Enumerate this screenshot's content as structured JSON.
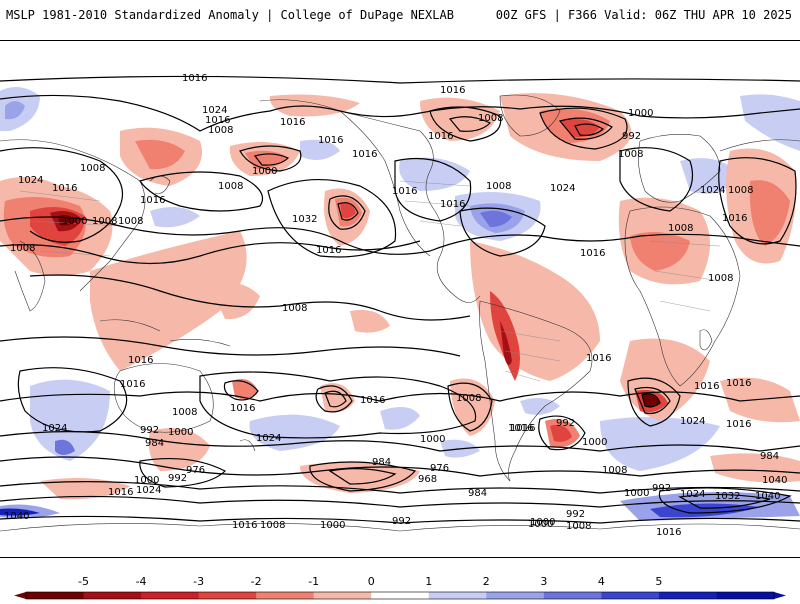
{
  "header": {
    "left": "MSLP 1981-2010 Standardized Anomaly | College of DuPage NEXLAB",
    "right": "00Z GFS | F366 Valid: 06Z THU APR 10 2025"
  },
  "isobar_labels": [
    "1016",
    "1016",
    "1024",
    "1016",
    "1008",
    "1016",
    "1016",
    "1016",
    "1008",
    "1000",
    "992",
    "1008",
    "1008",
    "1000",
    "1008",
    "1024",
    "1016",
    "1016",
    "1008",
    "1016",
    "1008",
    "1000",
    "1008",
    "1016",
    "1032",
    "1016",
    "1024",
    "1016",
    "1016",
    "1024",
    "1008",
    "1016",
    "1008",
    "1016",
    "1008",
    "1016",
    "1008",
    "1016",
    "1008",
    "1016",
    "1024",
    "1008",
    "1016",
    "1024",
    "1000",
    "1016",
    "1000",
    "992",
    "984",
    "976",
    "1000",
    "992",
    "984",
    "976",
    "968",
    "984",
    "1008",
    "1016",
    "1016",
    "992",
    "1000",
    "1024",
    "1016",
    "1000",
    "992",
    "1016",
    "1024",
    "1000",
    "992",
    "1024",
    "1032",
    "1040",
    "984",
    "1040",
    "1016",
    "1008",
    "1000",
    "992",
    "1000",
    "1008",
    "1016",
    "1040",
    "1016",
    "1008"
  ],
  "legend": {
    "ticks": [
      "-5",
      "-4",
      "-3",
      "-2",
      "-1",
      "0",
      "1",
      "2",
      "3",
      "4",
      "5"
    ],
    "colors": [
      "#6e0000",
      "#a50f15",
      "#cb2027",
      "#e0443e",
      "#f08070",
      "#f6b8a8",
      "#ffffff",
      "#c8cdf4",
      "#9aa2ea",
      "#6d75dd",
      "#3c45d0",
      "#1520b8",
      "#070fa0"
    ]
  }
}
